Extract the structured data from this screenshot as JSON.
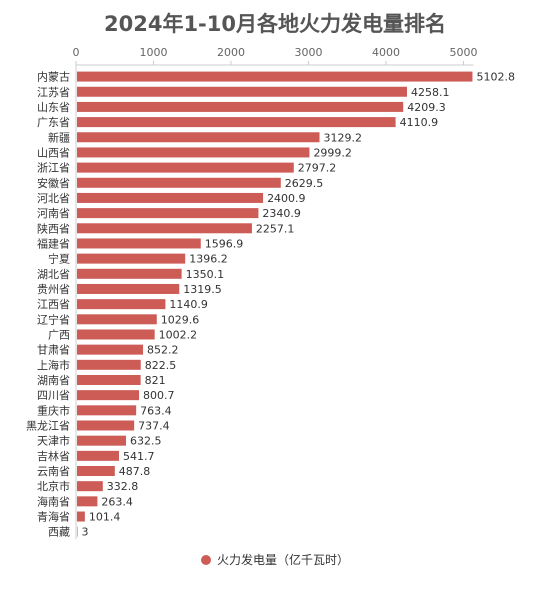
{
  "chart_data": {
    "type": "bar",
    "orientation": "horizontal",
    "title": "2024年1-10月各地火力发电量排名",
    "categories": [
      "内蒙古",
      "江苏省",
      "山东省",
      "广东省",
      "新疆",
      "山西省",
      "浙江省",
      "安徽省",
      "河北省",
      "河南省",
      "陕西省",
      "福建省",
      "宁夏",
      "湖北省",
      "贵州省",
      "江西省",
      "辽宁省",
      "广西",
      "甘肃省",
      "上海市",
      "湖南省",
      "四川省",
      "重庆市",
      "黑龙江省",
      "天津市",
      "吉林省",
      "云南省",
      "北京市",
      "海南省",
      "青海省",
      "西藏"
    ],
    "series": [
      {
        "name": "火力发电量（亿千瓦时）",
        "color": "#cd5c57",
        "values": [
          5102.8,
          4258.1,
          4209.3,
          4110.9,
          3129.2,
          2999.2,
          2797.2,
          2629.5,
          2400.9,
          2340.9,
          2257.1,
          1596.9,
          1396.2,
          1350.1,
          1319.5,
          1140.9,
          1029.6,
          1002.2,
          852.2,
          822.5,
          821,
          800.7,
          763.4,
          737.4,
          632.5,
          541.7,
          487.8,
          332.8,
          263.4,
          101.4,
          3
        ]
      }
    ],
    "value_axis": {
      "min": 0,
      "max": 5000,
      "ticks": [
        0,
        1000,
        2000,
        3000,
        4000,
        5000
      ],
      "position": "top"
    },
    "grid": false,
    "legend_position": "bottom-center",
    "data_labels": true
  }
}
